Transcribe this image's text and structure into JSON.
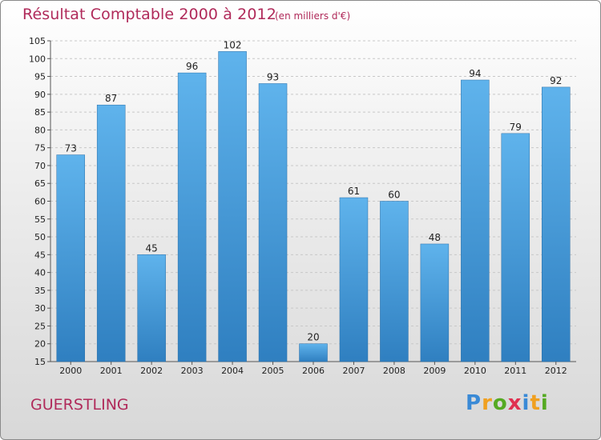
{
  "chart_data": {
    "type": "bar",
    "title": "Résultat Comptable 2000 à 2012",
    "subtitle": "(en milliers d'€)",
    "categories": [
      "2000",
      "2001",
      "2002",
      "2003",
      "2004",
      "2005",
      "2006",
      "2007",
      "2008",
      "2009",
      "2010",
      "2011",
      "2012"
    ],
    "values": [
      73,
      87,
      45,
      96,
      102,
      93,
      20,
      61,
      60,
      48,
      94,
      79,
      92
    ],
    "ylim": [
      15,
      105
    ],
    "yticks": [
      15,
      20,
      25,
      30,
      35,
      40,
      45,
      50,
      55,
      60,
      65,
      70,
      75,
      80,
      85,
      90,
      95,
      100,
      105
    ],
    "xlabel": "",
    "ylabel": "",
    "grid": true,
    "bar_color": "#4ba2df"
  },
  "commune": "GUERSTLING",
  "logo": {
    "letters": [
      "P",
      "r",
      "o",
      "x",
      "i",
      "t",
      "i"
    ],
    "colors": [
      "#3a8ad6",
      "#f0a020",
      "#55aa22",
      "#e03050",
      "#3a8ad6",
      "#f0a020",
      "#55aa22"
    ]
  }
}
